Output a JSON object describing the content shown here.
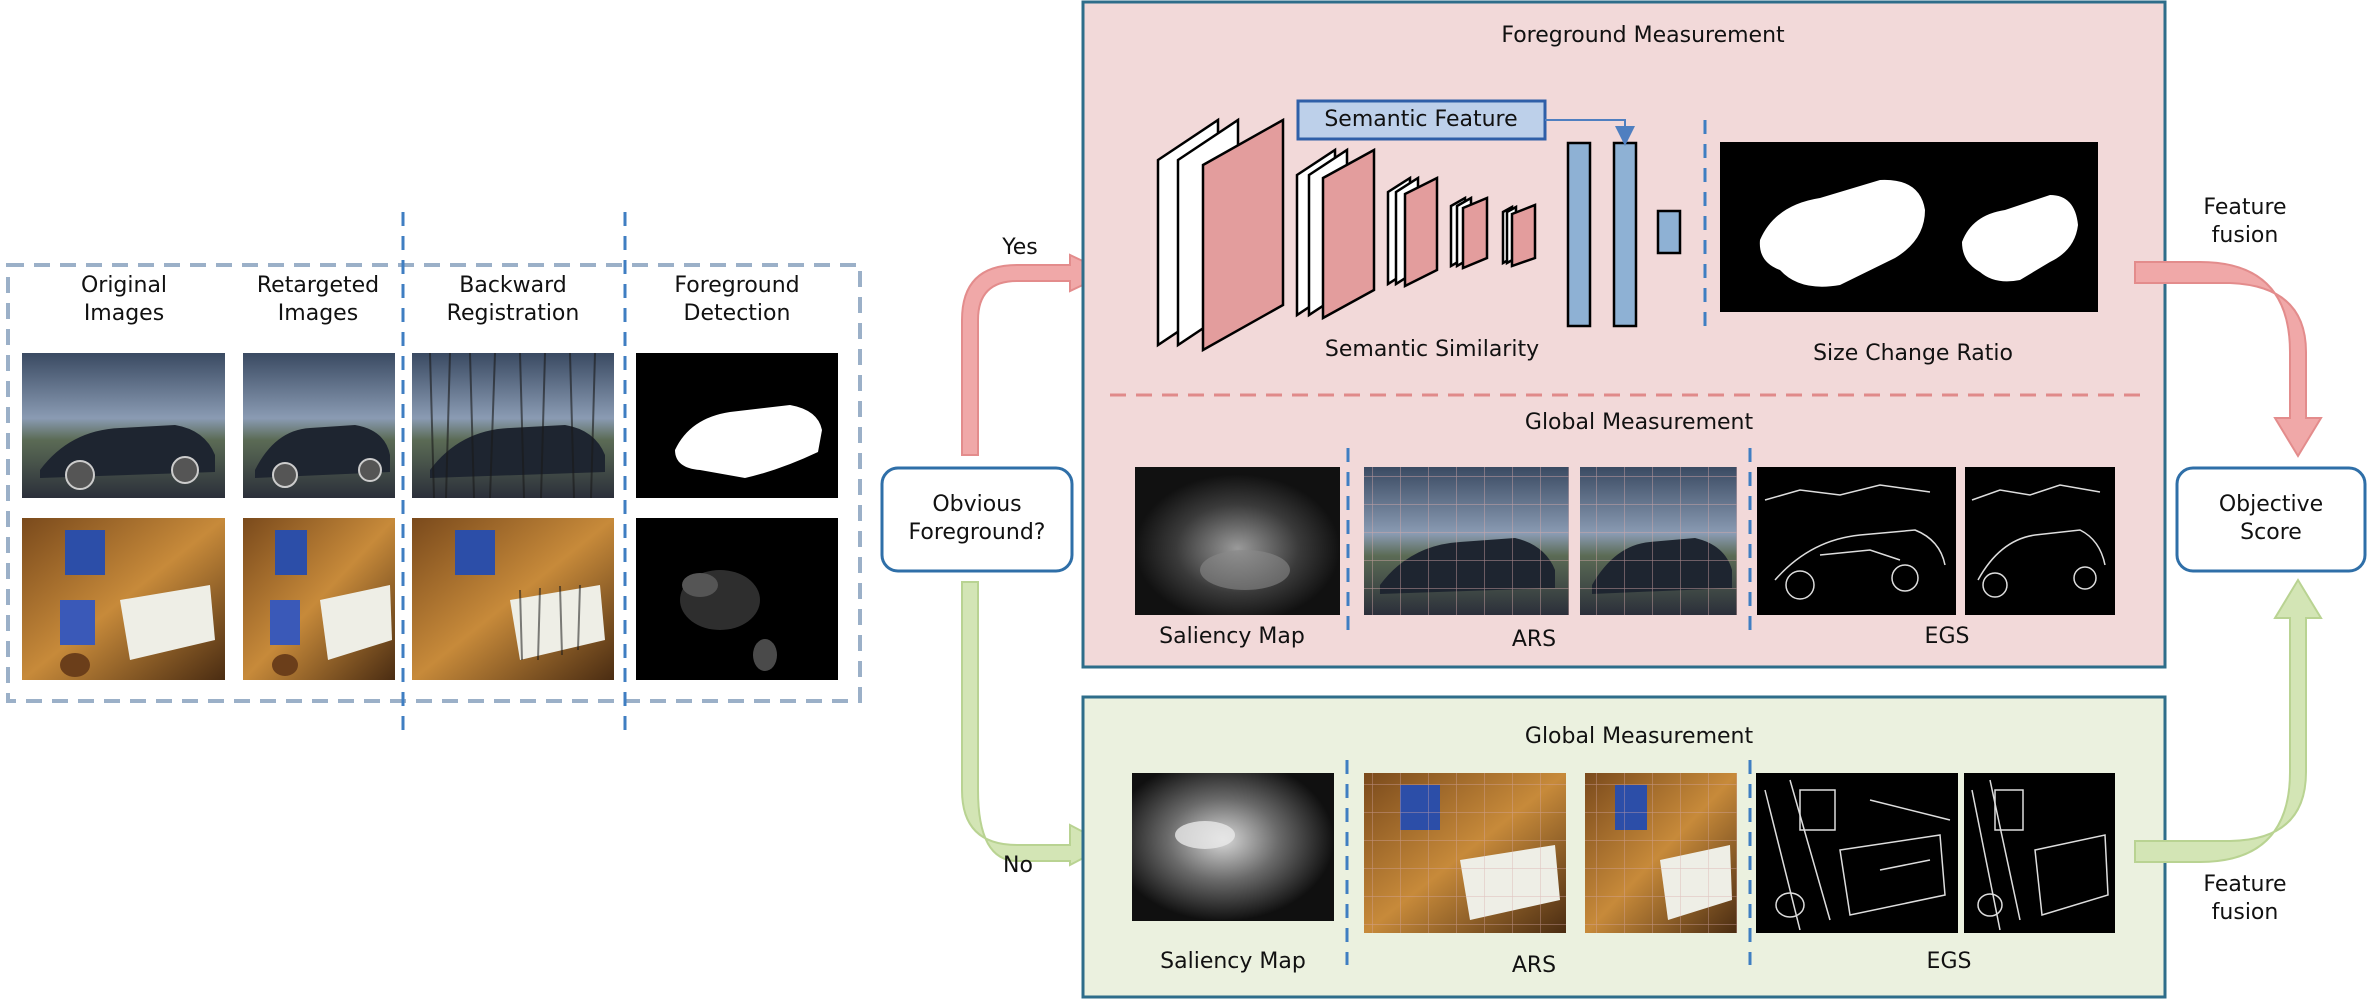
{
  "left_panel": {
    "col_headers": [
      "Original\nImages",
      "Retargeted\nImages",
      "Backward\nRegistration",
      "Foreground\nDetection"
    ]
  },
  "decision": {
    "label": "Obvious\nForeground?",
    "yes_label": "Yes",
    "no_label": "No"
  },
  "top_panel": {
    "title": "Foreground Measurement",
    "semantic_feature_label": "Semantic Feature",
    "semantic_similarity_label": "Semantic Similarity",
    "size_change_ratio_label": "Size Change Ratio",
    "global_title": "Global Measurement",
    "saliency_label": "Saliency Map",
    "ars_label": "ARS",
    "egs_label": "EGS"
  },
  "bottom_panel": {
    "title": "Global Measurement",
    "saliency_label": "Saliency Map",
    "ars_label": "ARS",
    "egs_label": "EGS"
  },
  "fusion": {
    "top_label": "Feature\nfusion",
    "bottom_label": "Feature\nfusion"
  },
  "output": {
    "label": "Objective\nScore"
  },
  "colors": {
    "pink_panel": "#f2d9d9",
    "green_panel": "#ebf1df",
    "panel_border": "#2e6d8a",
    "blue_node": "#8eb1d4",
    "pink_layer": "#e39d9d",
    "pink_arrow": "#f0a8a8",
    "green_arrow": "#d3e5b5",
    "dashed_blue": "#3f7ec2"
  }
}
